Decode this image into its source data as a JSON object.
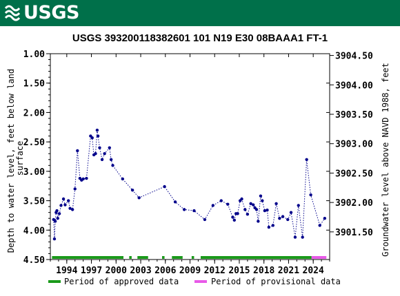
{
  "header": {
    "logo_text": "USGS"
  },
  "chart_data": {
    "type": "scatter",
    "title": "USGS 393200118382601 101  N19 E30 08BAAA1    FT-1",
    "ylabel": "Depth to water level, feet below land surface",
    "y2label": "Groundwater level above NAVD 1988, feet",
    "ylim": [
      1.0,
      4.5
    ],
    "y_inverted": true,
    "xlim": [
      1992.0,
      2026.0
    ],
    "x_ticks": [
      1994,
      1997,
      2000,
      2003,
      2006,
      2009,
      2012,
      2015,
      2018,
      2021,
      2024
    ],
    "y_ticks": [
      1.0,
      1.5,
      2.0,
      2.5,
      3.0,
      3.5,
      4.0,
      4.5
    ],
    "y_tick_labels": [
      "1.00",
      "1.50",
      "2.00",
      "2.50",
      "3.00",
      "3.50",
      "4.00",
      "4.50"
    ],
    "y2_ticks": [
      3904.5,
      3904.0,
      3903.5,
      3903.0,
      3902.5,
      3902.0,
      3901.5
    ],
    "y2_tick_labels": [
      "3904.50",
      "3904.00",
      "3903.50",
      "3903.00",
      "3902.50",
      "3902.00",
      "3901.50"
    ],
    "y2_offset": 3905.53,
    "series": [
      {
        "color": "#00008b",
        "marker": "circle",
        "line": "dotted",
        "points": [
          [
            1992.4,
            3.82
          ],
          [
            1992.5,
            4.15
          ],
          [
            1992.6,
            3.85
          ],
          [
            1992.7,
            3.7
          ],
          [
            1992.8,
            3.67
          ],
          [
            1992.9,
            3.8
          ],
          [
            1993.1,
            3.72
          ],
          [
            1993.3,
            3.58
          ],
          [
            1993.6,
            3.47
          ],
          [
            1993.8,
            3.57
          ],
          [
            1994.2,
            3.5
          ],
          [
            1994.4,
            3.63
          ],
          [
            1994.7,
            3.65
          ],
          [
            1995.0,
            3.3
          ],
          [
            1995.3,
            2.65
          ],
          [
            1995.6,
            3.12
          ],
          [
            1995.8,
            3.15
          ],
          [
            1996.0,
            3.13
          ],
          [
            1996.4,
            3.12
          ],
          [
            1996.9,
            2.4
          ],
          [
            1997.1,
            2.43
          ],
          [
            1997.3,
            2.72
          ],
          [
            1997.5,
            2.7
          ],
          [
            1997.7,
            2.3
          ],
          [
            1997.8,
            2.4
          ],
          [
            1998.0,
            2.6
          ],
          [
            1998.3,
            2.8
          ],
          [
            1998.6,
            2.7
          ],
          [
            1999.2,
            2.6
          ],
          [
            1999.4,
            2.8
          ],
          [
            1999.6,
            2.9
          ],
          [
            2000.8,
            3.13
          ],
          [
            2002.0,
            3.32
          ],
          [
            2002.8,
            3.45
          ],
          [
            2005.9,
            3.26
          ],
          [
            2007.2,
            3.52
          ],
          [
            2008.3,
            3.65
          ],
          [
            2009.5,
            3.67
          ],
          [
            2010.8,
            3.82
          ],
          [
            2011.8,
            3.58
          ],
          [
            2012.8,
            3.5
          ],
          [
            2013.6,
            3.56
          ],
          [
            2014.2,
            3.78
          ],
          [
            2014.4,
            3.83
          ],
          [
            2014.6,
            3.72
          ],
          [
            2014.8,
            3.72
          ],
          [
            2015.1,
            3.5
          ],
          [
            2015.3,
            3.47
          ],
          [
            2015.7,
            3.65
          ],
          [
            2016.0,
            3.73
          ],
          [
            2016.4,
            3.55
          ],
          [
            2016.7,
            3.57
          ],
          [
            2016.9,
            3.62
          ],
          [
            2017.1,
            3.65
          ],
          [
            2017.3,
            3.85
          ],
          [
            2017.6,
            3.42
          ],
          [
            2017.8,
            3.5
          ],
          [
            2018.1,
            3.67
          ],
          [
            2018.4,
            3.66
          ],
          [
            2018.6,
            3.95
          ],
          [
            2019.1,
            3.92
          ],
          [
            2019.5,
            3.55
          ],
          [
            2019.9,
            3.8
          ],
          [
            2020.3,
            3.77
          ],
          [
            2020.9,
            3.82
          ],
          [
            2021.3,
            3.7
          ],
          [
            2021.8,
            4.12
          ],
          [
            2022.2,
            3.58
          ],
          [
            2022.7,
            4.12
          ],
          [
            2023.2,
            2.8
          ],
          [
            2023.7,
            3.4
          ],
          [
            2024.8,
            3.92
          ],
          [
            2025.4,
            3.8
          ]
        ]
      }
    ],
    "legend": [
      {
        "label": "Period of approved data",
        "color": "#1a9a1a"
      },
      {
        "label": "Period of provisional data",
        "color": "#e859e8"
      }
    ],
    "approved_periods": [
      [
        1992.2,
        2000.9
      ],
      [
        2001.6,
        2001.9
      ],
      [
        2002.6,
        2003.9
      ],
      [
        2005.6,
        2005.9
      ],
      [
        2006.8,
        2008.1
      ],
      [
        2009.2,
        2009.5
      ],
      [
        2010.3,
        2023.8
      ]
    ],
    "provisional_periods": [
      [
        2023.8,
        2025.6
      ]
    ],
    "legend_placement": "bottom",
    "grid": false
  }
}
